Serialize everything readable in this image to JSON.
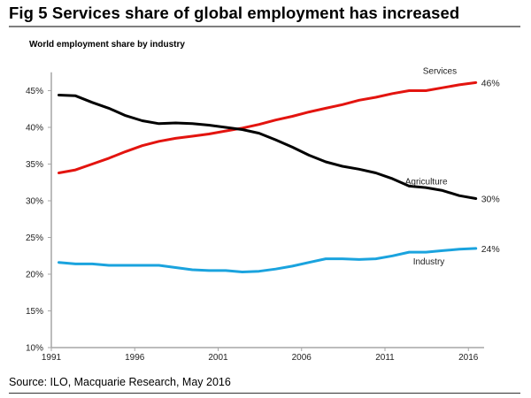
{
  "figure": {
    "title": "Fig 5  Services share of global employment has increased",
    "source": "Source: ILO, Macquarie Research, May 2016"
  },
  "chart_data": {
    "type": "line",
    "title": "World employment share by industry",
    "xlabel": "",
    "ylabel": "",
    "ylim": [
      10,
      48
    ],
    "xlim": [
      1991,
      2017
    ],
    "y_ticks": [
      "10%",
      "15%",
      "20%",
      "25%",
      "30%",
      "35%",
      "40%",
      "45%"
    ],
    "y_tick_values": [
      10,
      15,
      20,
      25,
      30,
      35,
      40,
      45
    ],
    "x_ticks": [
      "1991",
      "1996",
      "2001",
      "2006",
      "2011",
      "2016"
    ],
    "x_tick_values": [
      1991,
      1996,
      2001,
      2006,
      2011,
      2016
    ],
    "grid": false,
    "legend": "inline-labels",
    "x": [
      1991,
      1992,
      1993,
      1994,
      1995,
      1996,
      1997,
      1998,
      1999,
      2000,
      2001,
      2002,
      2003,
      2004,
      2005,
      2006,
      2007,
      2008,
      2009,
      2010,
      2011,
      2012,
      2013,
      2014,
      2015,
      2016
    ],
    "series": [
      {
        "name": "Services",
        "color": "#e3140f",
        "end_label": "46%",
        "values": [
          33.8,
          34.2,
          35.0,
          35.8,
          36.7,
          37.5,
          38.1,
          38.5,
          38.8,
          39.1,
          39.5,
          39.9,
          40.4,
          41.0,
          41.5,
          42.1,
          42.6,
          43.1,
          43.7,
          44.1,
          44.6,
          45.0,
          45.0,
          45.4,
          45.8,
          46.1
        ]
      },
      {
        "name": "Agriculture",
        "color": "#000000",
        "end_label": "30%",
        "values": [
          44.4,
          44.3,
          43.4,
          42.6,
          41.6,
          40.9,
          40.5,
          40.6,
          40.5,
          40.3,
          40.0,
          39.7,
          39.2,
          38.3,
          37.3,
          36.2,
          35.3,
          34.7,
          34.3,
          33.8,
          33.0,
          32.0,
          31.8,
          31.4,
          30.7,
          30.3
        ]
      },
      {
        "name": "Industry",
        "color": "#1aa3de",
        "end_label": "24%",
        "values": [
          21.6,
          21.4,
          21.4,
          21.2,
          21.2,
          21.2,
          21.2,
          20.9,
          20.6,
          20.5,
          20.5,
          20.3,
          20.4,
          20.7,
          21.1,
          21.6,
          22.1,
          22.1,
          22.0,
          22.1,
          22.5,
          23.0,
          23.0,
          23.2,
          23.4,
          23.5
        ]
      }
    ]
  }
}
